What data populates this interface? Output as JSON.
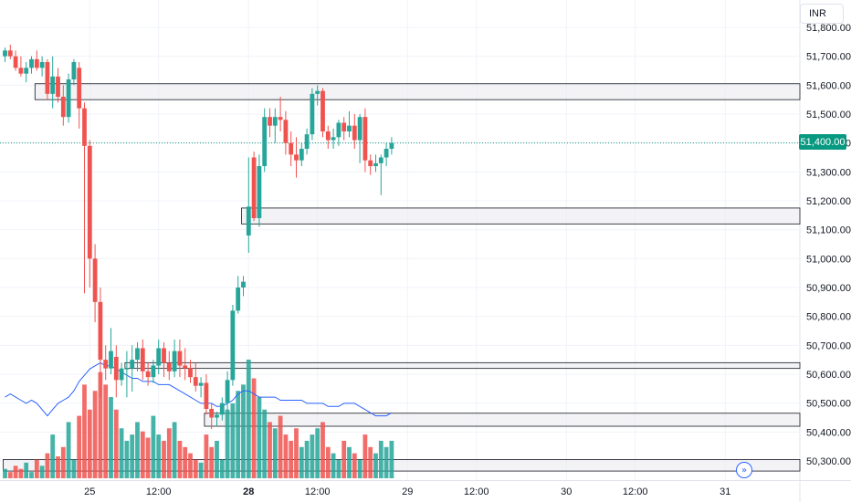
{
  "currency": "INR",
  "last_price_label": "51,400.00",
  "goto_icon": "double-chevron-right-icon",
  "colors": {
    "up": "#26a69a",
    "down": "#ef5350",
    "up_vol": "#26a69a",
    "down_vol": "#ef5350",
    "ma": "#2962ff",
    "badge": "#089981",
    "zone": "#e9eaee"
  },
  "chart_data": {
    "type": "candlestick",
    "currency": "INR",
    "ylim": [
      50250,
      51850
    ],
    "y_ticks": [
      {
        "value": 51800,
        "label": "51,800.00"
      },
      {
        "value": 51700,
        "label": "51,700.00"
      },
      {
        "value": 51600,
        "label": "51,600.00"
      },
      {
        "value": 51500,
        "label": "51,500.00"
      },
      {
        "value": 51400,
        "label": "51,400.00"
      },
      {
        "value": 51300,
        "label": "51,300.00"
      },
      {
        "value": 51200,
        "label": "51,200.00"
      },
      {
        "value": 51100,
        "label": "51,100.00"
      },
      {
        "value": 51000,
        "label": "51,000.00"
      },
      {
        "value": 50900,
        "label": "50,900.00"
      },
      {
        "value": 50800,
        "label": "50,800.00"
      },
      {
        "value": 50700,
        "label": "50,700.00"
      },
      {
        "value": 50600,
        "label": "50,600.00"
      },
      {
        "value": 50500,
        "label": "50,500.00"
      },
      {
        "value": 50400,
        "label": "50,400.00"
      },
      {
        "value": 50300,
        "label": "50,300.00"
      }
    ],
    "x_ticks": [
      {
        "label": "25",
        "bold": false,
        "bar": 16
      },
      {
        "label": "12:00",
        "bold": false,
        "bar": 29
      },
      {
        "label": "28",
        "bold": true,
        "bar": 46
      },
      {
        "label": "12:00",
        "bold": false,
        "bar": 59
      },
      {
        "label": "29",
        "bold": false,
        "bar": 76
      },
      {
        "label": "12:00",
        "bold": false,
        "bar": 89
      },
      {
        "label": "30",
        "bold": false,
        "bar": 106
      },
      {
        "label": "12:00",
        "bold": false,
        "bar": 119
      },
      {
        "label": "31",
        "bold": false,
        "bar": 136
      }
    ],
    "last_price": 51400,
    "ohlc": [
      [
        51700,
        51730,
        51680,
        51720
      ],
      [
        51720,
        51740,
        51690,
        51700
      ],
      [
        51700,
        51720,
        51650,
        51660
      ],
      [
        51660,
        51700,
        51630,
        51640
      ],
      [
        51640,
        51680,
        51610,
        51660
      ],
      [
        51660,
        51700,
        51640,
        51690
      ],
      [
        51690,
        51720,
        51650,
        51660
      ],
      [
        51660,
        51700,
        51630,
        51680
      ],
      [
        51680,
        51690,
        51550,
        51570
      ],
      [
        51570,
        51700,
        51520,
        51630
      ],
      [
        51630,
        51660,
        51540,
        51560
      ],
      [
        51560,
        51600,
        51460,
        51490
      ],
      [
        51490,
        51640,
        51470,
        51620
      ],
      [
        51620,
        51690,
        51600,
        51680
      ],
      [
        51660,
        51680,
        51450,
        51520
      ],
      [
        51520,
        51540,
        50880,
        51390
      ],
      [
        51390,
        51410,
        50900,
        51000
      ],
      [
        51000,
        51050,
        50780,
        50850
      ],
      [
        50850,
        50900,
        50520,
        50650
      ],
      [
        50650,
        50700,
        50580,
        50620
      ],
      [
        50620,
        50760,
        50600,
        50680
      ],
      [
        50660,
        50700,
        50520,
        50580
      ],
      [
        50580,
        50640,
        50560,
        50620
      ],
      [
        50620,
        50680,
        50520,
        50620
      ],
      [
        50620,
        50700,
        50540,
        50650
      ],
      [
        50650,
        50710,
        50610,
        50690
      ],
      [
        50690,
        50720,
        50580,
        50610
      ],
      [
        50610,
        50640,
        50560,
        50590
      ],
      [
        50590,
        50650,
        50570,
        50630
      ],
      [
        50630,
        50720,
        50600,
        50690
      ],
      [
        50690,
        50710,
        50590,
        50640
      ],
      [
        50640,
        50680,
        50580,
        50610
      ],
      [
        50610,
        50720,
        50590,
        50680
      ],
      [
        50680,
        50720,
        50590,
        50630
      ],
      [
        50630,
        50690,
        50580,
        50620
      ],
      [
        50620,
        50650,
        50570,
        50590
      ],
      [
        50590,
        50640,
        50540,
        50560
      ],
      [
        50560,
        50590,
        50520,
        50570
      ],
      [
        50570,
        50600,
        50460,
        50480
      ],
      [
        50480,
        50500,
        50410,
        50450
      ],
      [
        50450,
        50470,
        50420,
        50460
      ],
      [
        50460,
        50520,
        50440,
        50500
      ],
      [
        50500,
        50610,
        50470,
        50580
      ],
      [
        50580,
        50840,
        50560,
        50820
      ],
      [
        50820,
        50940,
        50810,
        50900
      ],
      [
        50900,
        50940,
        50870,
        50920
      ],
      [
        51080,
        51350,
        51020,
        51180
      ],
      [
        51350,
        51370,
        51130,
        51140
      ],
      [
        51140,
        51360,
        51110,
        51320
      ],
      [
        51320,
        51520,
        51300,
        51490
      ],
      [
        51490,
        51520,
        51420,
        51460
      ],
      [
        51460,
        51520,
        51400,
        51490
      ],
      [
        51490,
        51560,
        51440,
        51480
      ],
      [
        51480,
        51510,
        51360,
        51400
      ],
      [
        51400,
        51440,
        51320,
        51360
      ],
      [
        51360,
        51420,
        51280,
        51340
      ],
      [
        51340,
        51400,
        51320,
        51380
      ],
      [
        51380,
        51450,
        51360,
        51430
      ],
      [
        51430,
        51590,
        51410,
        51570
      ],
      [
        51570,
        51600,
        51530,
        51580
      ],
      [
        51580,
        51590,
        51420,
        51440
      ],
      [
        51440,
        51460,
        51380,
        51410
      ],
      [
        51410,
        51450,
        51380,
        51420
      ],
      [
        51420,
        51480,
        51390,
        51470
      ],
      [
        51470,
        51490,
        51410,
        51440
      ],
      [
        51440,
        51510,
        51420,
        51460
      ],
      [
        51460,
        51500,
        51380,
        51410
      ],
      [
        51410,
        51500,
        51330,
        51490
      ],
      [
        51490,
        51520,
        51300,
        51340
      ],
      [
        51340,
        51360,
        51290,
        51320
      ],
      [
        51320,
        51360,
        51300,
        51330
      ],
      [
        51330,
        51360,
        51220,
        51350
      ],
      [
        51350,
        51400,
        51320,
        51380
      ],
      [
        51380,
        51420,
        51360,
        51400
      ]
    ],
    "volume": [
      3,
      2,
      4,
      3,
      5,
      2,
      6,
      4,
      8,
      14,
      7,
      10,
      18,
      6,
      20,
      30,
      22,
      28,
      34,
      30,
      26,
      22,
      16,
      12,
      14,
      18,
      15,
      13,
      20,
      14,
      12,
      16,
      18,
      12,
      10,
      8,
      6,
      5,
      14,
      10,
      12,
      6,
      22,
      24,
      28,
      30,
      38,
      32,
      26,
      22,
      18,
      16,
      20,
      14,
      12,
      16,
      10,
      12,
      14,
      16,
      18,
      10,
      8,
      6,
      12,
      10,
      8,
      6,
      14,
      10,
      8,
      12,
      10,
      12
    ],
    "volume_ma": [
      26,
      27,
      26,
      25,
      24,
      25,
      24,
      22,
      20,
      22,
      24,
      25,
      26,
      28,
      31,
      33,
      35,
      36,
      37,
      36,
      36,
      35,
      34,
      33,
      32,
      32,
      31,
      31,
      31,
      30,
      30,
      30,
      29,
      28,
      27,
      26,
      25,
      24,
      24,
      24,
      23,
      23,
      24,
      25,
      27,
      28,
      28,
      27,
      26,
      26,
      26,
      26,
      25,
      25,
      25,
      25,
      25,
      24,
      24,
      24,
      24,
      23,
      23,
      23,
      24,
      24,
      24,
      23,
      22,
      21,
      20,
      20,
      20,
      21
    ],
    "zones": [
      {
        "from_bar": 6,
        "top": 51605,
        "bottom": 51550
      },
      {
        "from_bar": 45,
        "top": 51175,
        "bottom": 51120
      },
      {
        "from_bar": 23,
        "top": 50640,
        "bottom": 50620
      },
      {
        "from_bar": 38,
        "top": 50465,
        "bottom": 50420
      },
      {
        "from_bar": 0,
        "top": 50305,
        "bottom": 50265
      }
    ]
  }
}
